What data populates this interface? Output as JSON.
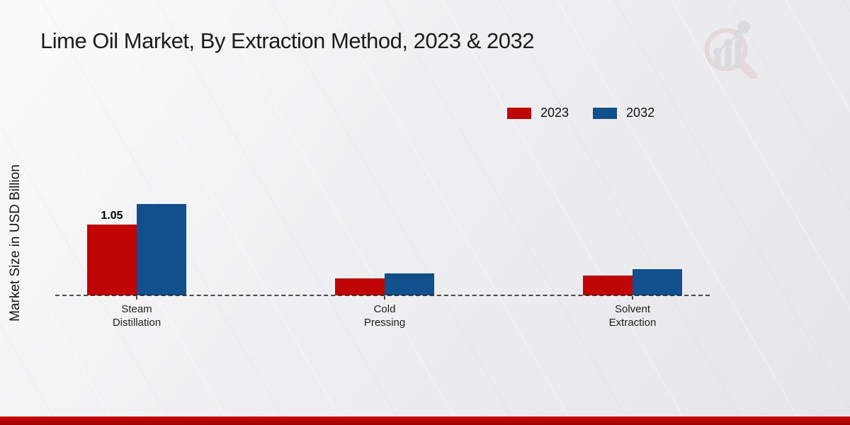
{
  "header": {
    "title": "Lime Oil Market, By Extraction Method, 2023 & 2032"
  },
  "y_axis": {
    "label": "Market Size in USD Billion"
  },
  "legend": {
    "items": [
      {
        "label": "2023",
        "color": "#c00505"
      },
      {
        "label": "2032",
        "color": "#11508c"
      }
    ]
  },
  "chart_data": {
    "type": "bar",
    "title": "Lime Oil Market, By Extraction Method, 2023 & 2032",
    "ylabel": "Market Size in USD Billion",
    "xlabel": "",
    "categories": [
      "Steam Distillation",
      "Cold Pressing",
      "Solvent Extraction"
    ],
    "category_lines": [
      [
        "Steam",
        "Distillation"
      ],
      [
        "Cold",
        "Pressing"
      ],
      [
        "Solvent",
        "Extraction"
      ]
    ],
    "series": [
      {
        "name": "2023",
        "color": "#c00505",
        "values": [
          1.05,
          0.25,
          0.29
        ]
      },
      {
        "name": "2032",
        "color": "#11508c",
        "values": [
          1.35,
          0.33,
          0.39
        ]
      }
    ],
    "annotations": [
      {
        "series": "2023",
        "category": "Steam Distillation",
        "text": "1.05"
      }
    ],
    "ylim": [
      0,
      1.6
    ],
    "grid": false,
    "baseline_style": "dashed",
    "legend_position": "top-right"
  },
  "watermark_icon": "market-research-magnifier-chart-logo",
  "colors": {
    "series_2023": "#c00505",
    "series_2032": "#11508c",
    "footer_band": "#c00000",
    "background": "#ededef"
  }
}
